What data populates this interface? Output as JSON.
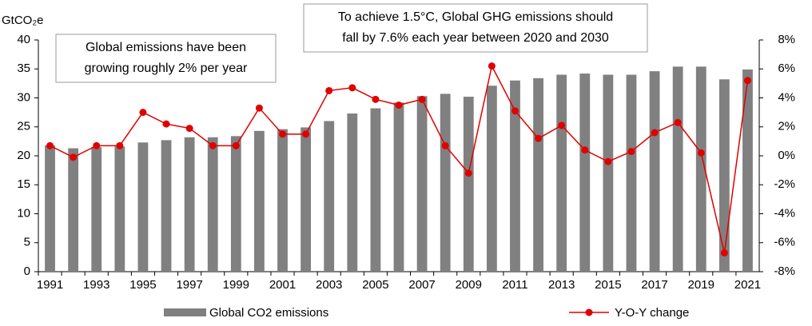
{
  "chart_data": {
    "type": "combo",
    "y_label": "GtCO₂e",
    "annotations": [
      [
        "Global emissions have been",
        "growing roughly 2% per year"
      ],
      [
        "To achieve 1.5°C, Global GHG emissions should",
        "fall by 7.6% each year between 2020 and 2030"
      ]
    ],
    "categories": [
      "1991",
      null,
      "1993",
      null,
      "1995",
      null,
      "1997",
      null,
      "1999",
      null,
      "2001",
      null,
      "2003",
      null,
      "2005",
      null,
      "2007",
      null,
      "2009",
      null,
      "2011",
      null,
      "2013",
      null,
      "2015",
      null,
      "2017",
      null,
      "2019",
      null,
      "2021"
    ],
    "series": [
      {
        "name": "Global CO2 emissions",
        "type": "bar",
        "color": "#808080",
        "values": [
          21.8,
          21.3,
          21.5,
          21.6,
          22.3,
          22.7,
          23.2,
          23.2,
          23.4,
          24.3,
          24.6,
          24.9,
          26.0,
          27.3,
          28.2,
          29.2,
          30.3,
          30.7,
          30.2,
          32.1,
          33.0,
          33.4,
          34.0,
          34.2,
          34.0,
          34.0,
          34.6,
          35.4,
          35.4,
          33.2,
          34.9
        ]
      },
      {
        "name": "Y-O-Y change",
        "type": "line",
        "axis": "y2",
        "color": "#e00000",
        "values": [
          0.7,
          -0.1,
          0.7,
          0.7,
          3.0,
          2.2,
          1.9,
          0.7,
          0.7,
          3.3,
          1.5,
          1.5,
          4.5,
          4.7,
          3.9,
          3.5,
          3.9,
          0.7,
          -1.2,
          6.2,
          3.1,
          1.2,
          2.1,
          0.4,
          -0.4,
          0.3,
          1.6,
          2.3,
          0.2,
          -6.7,
          5.2
        ]
      }
    ],
    "ylim": [
      0,
      40
    ],
    "yticks": [
      0,
      5,
      10,
      15,
      20,
      25,
      30,
      35,
      40
    ],
    "y2lim": [
      -8,
      8
    ],
    "y2ticks": [
      {
        "value": -8,
        "label": "-8%"
      },
      {
        "value": -6,
        "label": "-6%"
      },
      {
        "value": -4,
        "label": "-4%"
      },
      {
        "value": -2,
        "label": "-2%"
      },
      {
        "value": 0,
        "label": "0%"
      },
      {
        "value": 2,
        "label": "2%"
      },
      {
        "value": 4,
        "label": "4%"
      },
      {
        "value": 6,
        "label": "6%"
      },
      {
        "value": 8,
        "label": "8%"
      }
    ],
    "legend": "bottom"
  }
}
